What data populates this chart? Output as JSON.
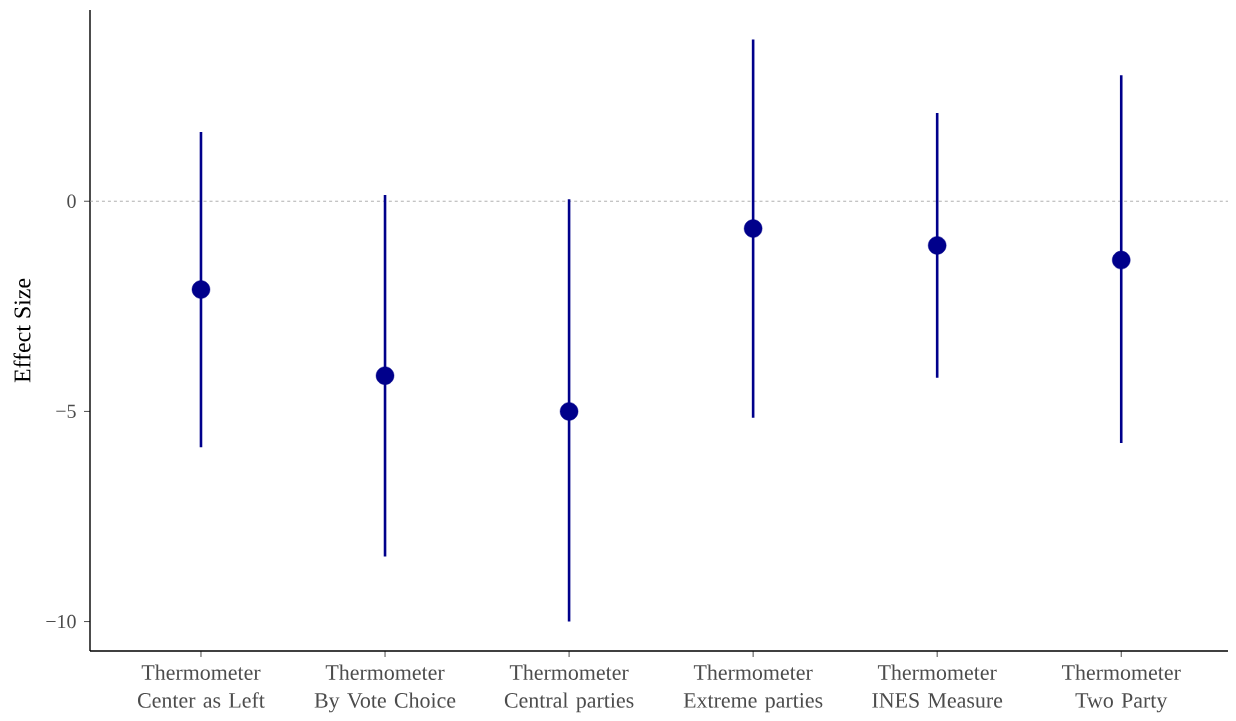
{
  "chart_data": {
    "type": "scatter",
    "ylabel": "Effect Size",
    "categories": [
      "Thermometer Center as Left",
      "Thermometer By Vote Choice",
      "Thermometer Central parties",
      "Thermometer Extreme parties",
      "Thermometer INES Measure",
      "Thermometer Two Party"
    ],
    "values": [
      -2.1,
      -4.15,
      -5.0,
      -0.65,
      -1.05,
      -1.4
    ],
    "errors": [
      [
        -5.85,
        1.65
      ],
      [
        -8.45,
        0.15
      ],
      [
        -10.0,
        0.05
      ],
      [
        -5.15,
        3.85
      ],
      [
        -4.2,
        2.1
      ],
      [
        -5.75,
        3.0
      ]
    ],
    "color": "#00008b",
    "ylim": [
      -10.7,
      4.55
    ],
    "yticks": [
      {
        "value": -10,
        "label": "−10"
      },
      {
        "value": -5,
        "label": "−5"
      },
      0
    ],
    "ref_lines": [
      {
        "axis": "y",
        "value": 0,
        "color": "#999999",
        "line_style": "dashed"
      }
    ],
    "grid": false
  }
}
